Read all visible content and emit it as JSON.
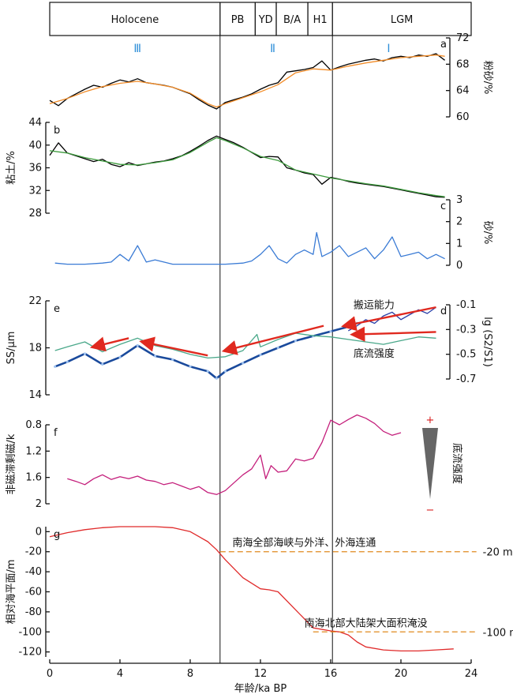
{
  "chart_data": [
    {
      "id": "periods",
      "type": "table",
      "labels": [
        {
          "text": "Holocene",
          "from": 0,
          "to": 9.7
        },
        {
          "text": "PB",
          "from": 9.7,
          "to": 11.7
        },
        {
          "text": "YD",
          "from": 11.7,
          "to": 12.9
        },
        {
          "text": "B/A",
          "from": 12.9,
          "to": 14.7
        },
        {
          "text": "H1",
          "from": 14.7,
          "to": 16.1
        },
        {
          "text": "LGM",
          "from": 16.1,
          "to": 24
        }
      ],
      "stages": [
        {
          "text": "Ⅲ",
          "x": 5
        },
        {
          "text": "Ⅱ",
          "x": 12.7
        },
        {
          "text": "Ⅰ",
          "x": 19.3
        }
      ],
      "boundaries": [
        9.7,
        16.1
      ]
    },
    {
      "id": "a",
      "panel_label": "a",
      "type": "line",
      "ylabel": "粉砂/%",
      "ylim": [
        60,
        72
      ],
      "yticks": [
        60,
        64,
        68,
        72
      ],
      "series": [
        {
          "color": "#000000",
          "x": [
            0,
            0.5,
            1,
            1.5,
            2,
            2.5,
            3,
            3.5,
            4,
            4.5,
            5,
            5.5,
            6,
            6.5,
            7,
            7.5,
            8,
            8.5,
            9,
            9.5,
            10,
            10.5,
            11,
            11.5,
            12,
            12.5,
            13,
            13.5,
            14,
            14.5,
            15,
            15.5,
            16,
            16.5,
            17,
            17.5,
            18,
            18.5,
            19,
            19.5,
            20,
            20.5,
            21,
            21.5,
            22,
            22.5
          ],
          "y": [
            62.5,
            61.7,
            62.8,
            63.5,
            64.2,
            64.8,
            64.5,
            65.1,
            65.6,
            65.3,
            65.8,
            65.2,
            65.0,
            64.8,
            64.5,
            64.0,
            63.5,
            62.6,
            61.8,
            61.2,
            62.2,
            62.6,
            63.0,
            63.5,
            64.2,
            64.8,
            65.2,
            66.8,
            67.0,
            67.2,
            67.5,
            68.5,
            67.1,
            67.6,
            68.0,
            68.3,
            68.6,
            68.8,
            68.5,
            69.0,
            69.2,
            69.0,
            69.4,
            69.2,
            69.6,
            68.6
          ]
        },
        {
          "color": "#f28c28",
          "x": [
            0,
            1,
            2,
            3,
            4,
            5,
            6,
            7,
            8,
            9,
            9.5,
            10,
            11,
            12,
            13,
            14,
            15,
            16,
            17,
            18,
            19,
            20,
            21,
            22,
            22.5
          ],
          "y": [
            62.0,
            62.8,
            63.8,
            64.6,
            65.1,
            65.4,
            65.0,
            64.5,
            63.6,
            62.0,
            61.5,
            62.0,
            62.9,
            63.8,
            64.9,
            66.7,
            67.3,
            67.1,
            67.7,
            68.2,
            68.6,
            69.0,
            69.2,
            69.4,
            69.2
          ]
        }
      ]
    },
    {
      "id": "b",
      "panel_label": "b",
      "type": "line",
      "ylabel": "粘土/%",
      "ylim": [
        28,
        44
      ],
      "yticks": [
        28,
        32,
        36,
        40,
        44
      ],
      "series": [
        {
          "color": "#000000",
          "x": [
            0,
            0.5,
            1,
            1.5,
            2,
            2.5,
            3,
            3.5,
            4,
            4.5,
            5,
            5.5,
            6,
            6.5,
            7,
            7.5,
            8,
            8.5,
            9,
            9.5,
            10,
            10.5,
            11,
            11.5,
            12,
            12.5,
            13,
            13.5,
            14,
            14.5,
            15,
            15.5,
            16,
            16.5,
            17,
            17.5,
            18,
            18.5,
            19,
            19.5,
            20,
            20.5,
            21,
            21.5,
            22,
            22.5
          ],
          "y": [
            38.2,
            40.4,
            38.6,
            38.1,
            37.6,
            37.1,
            37.5,
            36.6,
            36.2,
            36.9,
            36.4,
            36.7,
            37.0,
            37.2,
            37.6,
            38.1,
            38.9,
            39.8,
            40.8,
            41.6,
            41.0,
            40.4,
            39.6,
            38.7,
            37.8,
            38.0,
            37.9,
            36.0,
            35.6,
            35.1,
            34.8,
            33.1,
            34.3,
            34.0,
            33.6,
            33.3,
            33.1,
            32.9,
            32.7,
            32.4,
            32.1,
            31.8,
            31.5,
            31.2,
            30.9,
            30.8
          ]
        },
        {
          "color": "#3c9a3c",
          "x": [
            0,
            1,
            2,
            3,
            4,
            5,
            6,
            7,
            8,
            9,
            9.5,
            10,
            11,
            12,
            13,
            14,
            15,
            16,
            17,
            18,
            19,
            20,
            21,
            22,
            22.5
          ],
          "y": [
            39.0,
            38.6,
            37.8,
            37.2,
            36.6,
            36.5,
            36.9,
            37.4,
            38.7,
            40.5,
            41.3,
            40.8,
            39.5,
            38.0,
            37.3,
            35.6,
            34.9,
            34.2,
            33.7,
            33.2,
            32.8,
            32.2,
            31.6,
            31.1,
            30.9
          ]
        }
      ]
    },
    {
      "id": "c",
      "panel_label": "c",
      "type": "line",
      "ylabel": "砂/%",
      "ylim": [
        0,
        3
      ],
      "yticks": [
        0,
        1,
        2,
        3
      ],
      "series": [
        {
          "color": "#3a7bd5",
          "x": [
            0.3,
            1,
            2,
            3,
            3.5,
            4,
            4.5,
            5,
            5.5,
            6,
            7,
            8,
            9,
            10,
            11,
            11.5,
            12,
            12.5,
            13,
            13.5,
            14,
            14.5,
            15,
            15.2,
            15.5,
            16,
            16.5,
            17,
            17.5,
            18,
            18.5,
            19,
            19.5,
            20,
            20.5,
            21,
            21.5,
            22,
            22.5
          ],
          "y": [
            0.1,
            0.05,
            0.05,
            0.1,
            0.15,
            0.5,
            0.2,
            0.9,
            0.15,
            0.25,
            0.05,
            0.05,
            0.05,
            0.05,
            0.1,
            0.2,
            0.5,
            0.9,
            0.3,
            0.1,
            0.5,
            0.7,
            0.5,
            1.5,
            0.4,
            0.6,
            0.9,
            0.4,
            0.6,
            0.8,
            0.3,
            0.7,
            1.3,
            0.4,
            0.5,
            0.6,
            0.3,
            0.5,
            0.3
          ]
        }
      ]
    },
    {
      "id": "e",
      "panel_label": "e",
      "type": "line",
      "ylabel": "SS/μm",
      "ylim": [
        14,
        22
      ],
      "yticks": [
        14,
        18,
        22
      ],
      "series": [
        {
          "color": "#1a4a9c",
          "x": [
            0.3,
            1,
            2,
            3,
            4,
            5,
            6,
            7,
            8,
            9,
            9.5,
            10,
            11,
            12,
            13,
            14,
            15,
            16,
            17,
            17.5
          ],
          "y": [
            16.4,
            16.8,
            17.5,
            16.6,
            17.2,
            18.2,
            17.3,
            17.0,
            16.4,
            16.0,
            15.4,
            16.0,
            16.7,
            17.4,
            18.0,
            18.6,
            19.0,
            19.4,
            19.8,
            20.1
          ]
        }
      ]
    },
    {
      "id": "d",
      "panel_label": "d",
      "type": "line",
      "ylabel": "lg (S2/S1)",
      "ylim": [
        -0.7,
        -0.1
      ],
      "yticks": [
        -0.7,
        -0.5,
        -0.3,
        -0.1
      ],
      "series": [
        {
          "color": "#4aa88a",
          "x": [
            0.3,
            1,
            2,
            3,
            4,
            5,
            6,
            7,
            8,
            9,
            10,
            11,
            11.8,
            12,
            13,
            14,
            15,
            16,
            17,
            18,
            19,
            20,
            21,
            22
          ],
          "y": [
            -0.47,
            -0.44,
            -0.4,
            -0.48,
            -0.42,
            -0.37,
            -0.43,
            -0.46,
            -0.5,
            -0.53,
            -0.52,
            -0.47,
            -0.34,
            -0.44,
            -0.38,
            -0.33,
            -0.35,
            -0.36,
            -0.38,
            -0.4,
            -0.42,
            -0.39,
            -0.36,
            -0.37
          ]
        },
        {
          "color": "#2a3fa8",
          "x": [
            17,
            17.5,
            18,
            18.5,
            19,
            19.5,
            20,
            20.5,
            21,
            21.5,
            22
          ],
          "y": [
            -0.31,
            -0.27,
            -0.22,
            -0.25,
            -0.19,
            -0.16,
            -0.22,
            -0.18,
            -0.14,
            -0.17,
            -0.12
          ]
        }
      ],
      "annotations": [
        {
          "text": "搬运能力",
          "x": 17.3,
          "y": -0.13
        },
        {
          "text": "底流强度",
          "x": 17.3,
          "y": -0.52
        }
      ],
      "arrows": [
        {
          "from": [
            22,
            -0.12
          ],
          "to": [
            16.8,
            -0.27
          ]
        },
        {
          "from": [
            22,
            -0.32
          ],
          "to": [
            17.3,
            -0.34
          ]
        },
        {
          "from": [
            15.6,
            -0.27
          ],
          "to": [
            10,
            -0.47
          ]
        },
        {
          "from": [
            9,
            -0.51
          ],
          "to": [
            5.3,
            -0.4
          ]
        },
        {
          "from": [
            4.5,
            -0.37
          ],
          "to": [
            2.5,
            -0.44
          ]
        }
      ]
    },
    {
      "id": "f",
      "panel_label": "f",
      "type": "line",
      "ylabel": "非磁滞剩磁/k",
      "ylim": [
        0.8,
        2.0
      ],
      "yticks": [
        0.8,
        1.2,
        1.6,
        2.0
      ],
      "inverted": true,
      "series": [
        {
          "color": "#c41e7b",
          "x": [
            1,
            1.5,
            2,
            2.5,
            3,
            3.5,
            4,
            4.5,
            5,
            5.5,
            6,
            6.5,
            7,
            7.5,
            8,
            8.5,
            9,
            9.5,
            10,
            10.5,
            11,
            11.5,
            12,
            12.3,
            12.6,
            13,
            13.5,
            14,
            14.5,
            15,
            15.5,
            16,
            16.5,
            17,
            17.5,
            18,
            18.5,
            19,
            19.5,
            20
          ],
          "y": [
            1.62,
            1.66,
            1.71,
            1.62,
            1.56,
            1.63,
            1.59,
            1.62,
            1.58,
            1.64,
            1.66,
            1.71,
            1.68,
            1.73,
            1.78,
            1.74,
            1.83,
            1.86,
            1.8,
            1.68,
            1.56,
            1.47,
            1.26,
            1.62,
            1.42,
            1.52,
            1.5,
            1.32,
            1.35,
            1.31,
            1.07,
            0.73,
            0.8,
            0.72,
            0.65,
            0.7,
            0.78,
            0.9,
            0.96,
            0.92
          ]
        }
      ],
      "legend_scale": {
        "label": "底流强度",
        "top": "+",
        "bottom": "−"
      }
    },
    {
      "id": "g",
      "panel_label": "g",
      "type": "line",
      "ylabel": "相对海平面/m",
      "xlabel": "年龄/ka BP",
      "xlim": [
        0,
        24
      ],
      "xticks": [
        0,
        4,
        8,
        12,
        16,
        20,
        24
      ],
      "ylim": [
        -125,
        5
      ],
      "yticks": [
        -120,
        -100,
        -80,
        -60,
        -40,
        -20,
        0
      ],
      "series": [
        {
          "color": "#e02a2a",
          "x": [
            0,
            1,
            2,
            3,
            4,
            5,
            6,
            7,
            8,
            9,
            9.5,
            10,
            11,
            12,
            12.5,
            13,
            14,
            15,
            16,
            16.5,
            17,
            17.5,
            18,
            19,
            20,
            21,
            22,
            23
          ],
          "y": [
            -5,
            -1,
            2,
            4,
            5,
            5,
            5,
            4,
            0,
            -10,
            -18,
            -28,
            -46,
            -57,
            -58,
            -60,
            -78,
            -96,
            -99,
            -100,
            -103,
            -110,
            -115,
            -118,
            -119,
            -119,
            -118,
            -117
          ]
        }
      ],
      "reference_lines": [
        {
          "y": -20,
          "label": "-20 m",
          "note": "南海全部海峡与外洋、外海连通"
        },
        {
          "y": -100,
          "label": "-100 m",
          "note": "南海北部大陆架大面积淹没"
        }
      ]
    }
  ]
}
